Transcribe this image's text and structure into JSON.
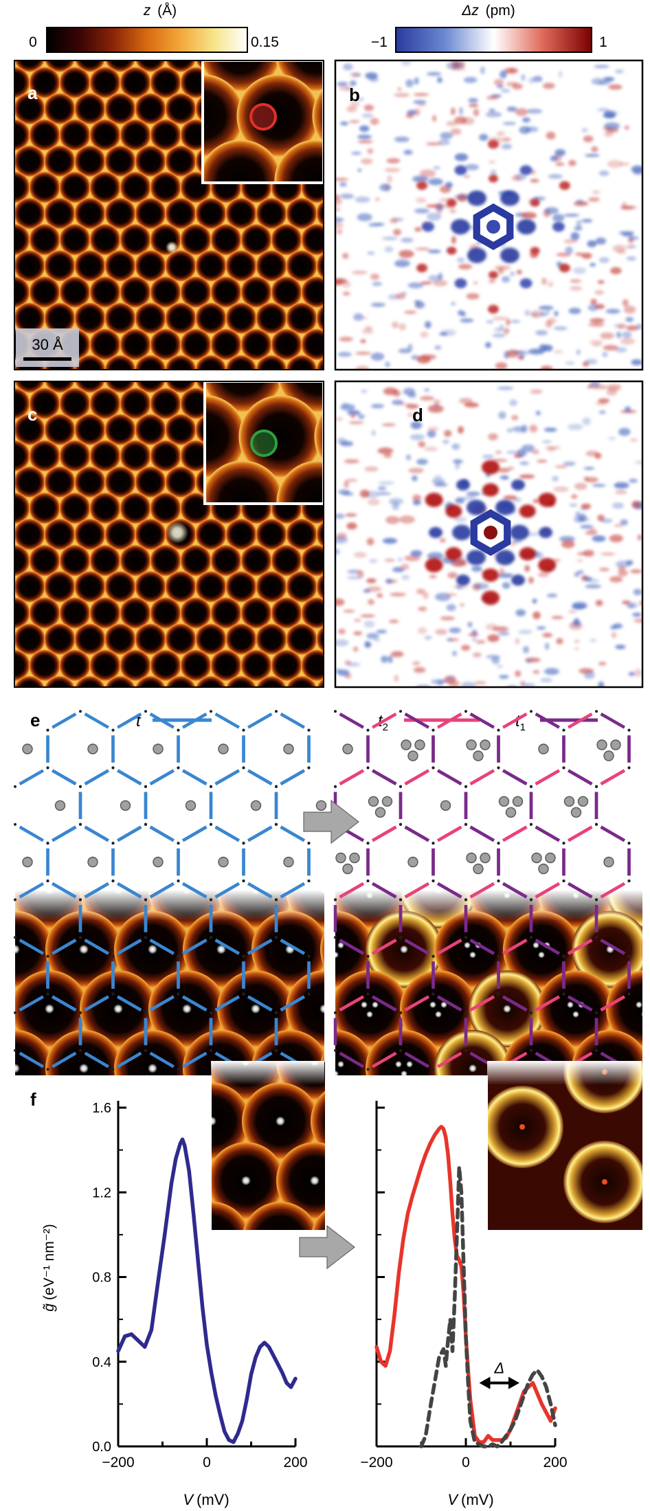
{
  "colorbars": {
    "left": {
      "title_var": "z",
      "title_unit": "(Å)",
      "min": "0",
      "max": "0.15",
      "stops": [
        "#000000",
        "#3a0505",
        "#8a2508",
        "#d86a10",
        "#f2a83a",
        "#f7e48a",
        "#ffffff"
      ]
    },
    "right": {
      "title_var": "Δz",
      "title_unit": "(pm)",
      "min": "−1",
      "max": "1",
      "stops": [
        "#2a3aa0",
        "#6a88d0",
        "#ffffff",
        "#e06a5a",
        "#7a0000"
      ]
    }
  },
  "panels": {
    "a": "a",
    "b": "b",
    "c": "c",
    "d": "d",
    "e": "e",
    "f": "f"
  },
  "scale_bar": "30 Å",
  "inset_markers": {
    "a_color": "#e0302a",
    "c_color": "#2fa040"
  },
  "legend_e": {
    "left": "t",
    "right_a": "t",
    "right_a_sub": "2",
    "right_b": "t",
    "right_b_sub": "1",
    "t_color": "#3a86d0",
    "t2_color": "#e8427a",
    "t1_color": "#7a2a8a"
  },
  "arrow_color": "#a8a8a8",
  "chart_data": [
    {
      "type": "line",
      "xlabel": "V",
      "xlabel_unit": "(mV)",
      "ylabel": "g̃",
      "ylabel_unit": "(eV⁻¹ nm⁻²)",
      "xlim": [
        -200,
        200
      ],
      "ylim": [
        0,
        1.6
      ],
      "xticks": [
        "−200",
        "0",
        "200"
      ],
      "yticks": [
        "0.0",
        "0.4",
        "0.8",
        "1.2",
        "1.6"
      ],
      "series": [
        {
          "color": "#2e2a8e",
          "style": "solid",
          "x": [
            -200,
            -185,
            -170,
            -155,
            -140,
            -125,
            -110,
            -95,
            -80,
            -70,
            -60,
            -55,
            -50,
            -40,
            -30,
            -20,
            -10,
            0,
            10,
            20,
            30,
            40,
            50,
            60,
            70,
            80,
            90,
            100,
            110,
            120,
            130,
            140,
            150,
            160,
            170,
            180,
            190,
            200
          ],
          "y": [
            0.45,
            0.52,
            0.53,
            0.5,
            0.47,
            0.55,
            0.78,
            1.0,
            1.24,
            1.36,
            1.43,
            1.45,
            1.42,
            1.3,
            1.1,
            0.88,
            0.66,
            0.48,
            0.35,
            0.24,
            0.15,
            0.07,
            0.03,
            0.02,
            0.06,
            0.12,
            0.22,
            0.34,
            0.42,
            0.47,
            0.49,
            0.47,
            0.43,
            0.39,
            0.35,
            0.3,
            0.28,
            0.32
          ]
        }
      ]
    },
    {
      "type": "line",
      "xlabel": "V",
      "xlabel_unit": "(mV)",
      "xlim": [
        -200,
        200
      ],
      "ylim": [
        0,
        1.6
      ],
      "xticks": [
        "−200",
        "0",
        "200"
      ],
      "annotation": "Δ",
      "series": [
        {
          "color": "#e8342a",
          "style": "solid",
          "x": [
            -200,
            -190,
            -180,
            -170,
            -160,
            -150,
            -140,
            -130,
            -120,
            -110,
            -100,
            -90,
            -80,
            -70,
            -60,
            -55,
            -50,
            -45,
            -40,
            -35,
            -30,
            -25,
            -20,
            -15,
            -10,
            -5,
            0,
            5,
            10,
            20,
            30,
            40,
            50,
            60,
            70,
            80,
            90,
            100,
            110,
            120,
            130,
            140,
            150,
            160,
            170,
            180,
            190,
            200
          ],
          "y": [
            0.47,
            0.4,
            0.38,
            0.45,
            0.62,
            0.82,
            0.98,
            1.1,
            1.18,
            1.25,
            1.32,
            1.38,
            1.43,
            1.47,
            1.5,
            1.51,
            1.5,
            1.46,
            1.38,
            1.25,
            1.1,
            0.98,
            0.9,
            0.88,
            0.85,
            0.72,
            0.52,
            0.36,
            0.22,
            0.05,
            0.02,
            0.02,
            0.05,
            0.03,
            0.03,
            0.03,
            0.04,
            0.08,
            0.14,
            0.2,
            0.26,
            0.28,
            0.3,
            0.25,
            0.2,
            0.16,
            0.12,
            0.18
          ]
        },
        {
          "color": "#444444",
          "style": "dashed",
          "x": [
            -100,
            -90,
            -80,
            -70,
            -60,
            -50,
            -45,
            -40,
            -35,
            -30,
            -25,
            -20,
            -15,
            -10,
            -5,
            0,
            5,
            10,
            20,
            30,
            40,
            50,
            60,
            70,
            80,
            90,
            100,
            110,
            120,
            130,
            140,
            150,
            160,
            170,
            180,
            190,
            200
          ],
          "y": [
            0.0,
            0.05,
            0.18,
            0.3,
            0.42,
            0.46,
            0.38,
            0.5,
            0.6,
            0.45,
            0.7,
            1.0,
            1.32,
            1.2,
            0.85,
            0.52,
            0.3,
            0.12,
            0.02,
            0.01,
            0.0,
            0.0,
            0.01,
            0.0,
            0.02,
            0.05,
            0.08,
            0.12,
            0.18,
            0.24,
            0.3,
            0.34,
            0.36,
            0.33,
            0.28,
            0.2,
            0.1
          ]
        }
      ]
    }
  ]
}
